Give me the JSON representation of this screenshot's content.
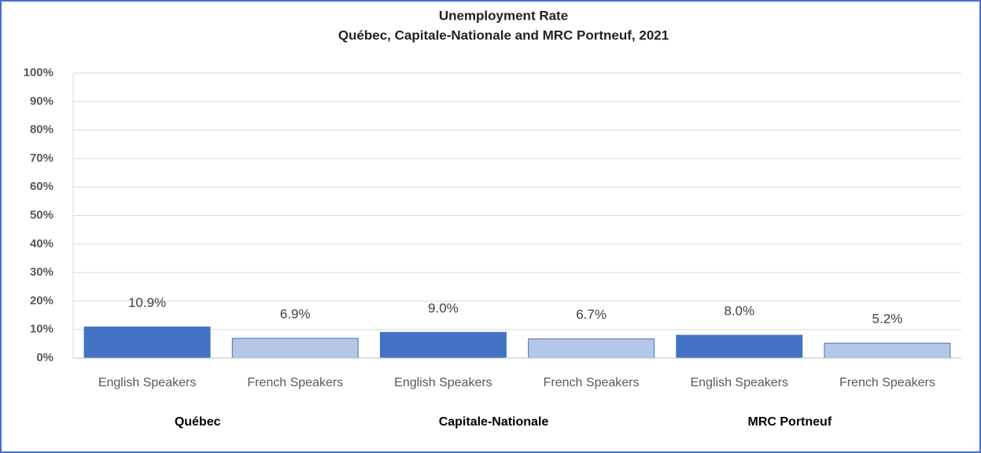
{
  "chart_data": {
    "type": "bar",
    "title": "Unemployment Rate",
    "subtitle": "Québec, Capitale-Nationale and MRC Portneuf, 2021",
    "categories": [
      "Québec",
      "Capitale-Nationale",
      "MRC Portneuf"
    ],
    "series": [
      {
        "name": "English Speakers",
        "color": "#4472c4",
        "values": [
          10.9,
          9.0,
          8.0
        ],
        "value_labels": [
          "10.9%",
          "9.0%",
          "8.0%"
        ]
      },
      {
        "name": "French Speakers",
        "color": "#b4c7e7",
        "values": [
          6.9,
          6.7,
          5.2
        ],
        "value_labels": [
          "6.9%",
          "6.7%",
          "5.2%"
        ]
      }
    ],
    "ylim": [
      0,
      100
    ],
    "yticks": [
      {
        "value": 0,
        "label": "0%"
      },
      {
        "value": 10,
        "label": "10%"
      },
      {
        "value": 20,
        "label": "20%"
      },
      {
        "value": 30,
        "label": "30%"
      },
      {
        "value": 40,
        "label": "40%"
      },
      {
        "value": 50,
        "label": "50%"
      },
      {
        "value": 60,
        "label": "60%"
      },
      {
        "value": 70,
        "label": "70%"
      },
      {
        "value": 80,
        "label": "80%"
      },
      {
        "value": 90,
        "label": "90%"
      },
      {
        "value": 100,
        "label": "100%"
      }
    ],
    "grid": true
  }
}
